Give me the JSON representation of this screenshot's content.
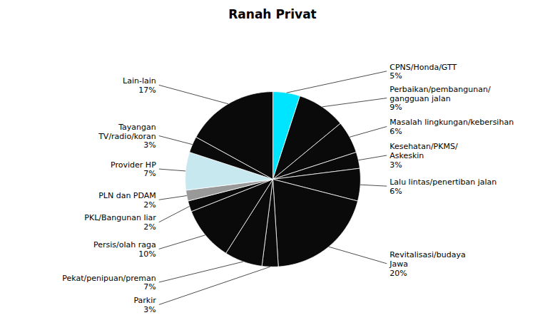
{
  "chart_data": {
    "type": "pie",
    "title": "Ranah Privat",
    "categories": [
      "CPNS/Honda/GTT",
      "Perbaikan/pembangunan/\ngangguan jalan",
      "Masalah lingkungan/kebersihan",
      "Kesehatan/PKMS/\nAskeskin",
      "Lalu lintas/penertiban jalan",
      "Revitalisasi/budaya\nJawa",
      "Parkir",
      "Pekat/penipuan/preman",
      "Persis/olah raga",
      "PKL/Bangunan liar",
      "PLN dan PDAM",
      "Provider HP",
      "Tayangan\nTV/radio/koran",
      "Lain-lain"
    ],
    "values": [
      5,
      9,
      6,
      3,
      6,
      20,
      3,
      7,
      10,
      2,
      2,
      7,
      3,
      17
    ],
    "value_labels": [
      "5%",
      "9%",
      "6%",
      "3%",
      "6%",
      "20%",
      "3%",
      "7%",
      "10%",
      "2%",
      "2%",
      "7%",
      "3%",
      "17%"
    ],
    "data_labels": true,
    "colors": [
      "#00E5FF",
      "#0a0a0a",
      "#0a0a0a",
      "#0a0a0a",
      "#0a0a0a",
      "#0a0a0a",
      "#0a0a0a",
      "#0a0a0a",
      "#0a0a0a",
      "#0a0a0a",
      "#999999",
      "#C8E8F0",
      "#0a0a0a",
      "#0a0a0a"
    ]
  }
}
